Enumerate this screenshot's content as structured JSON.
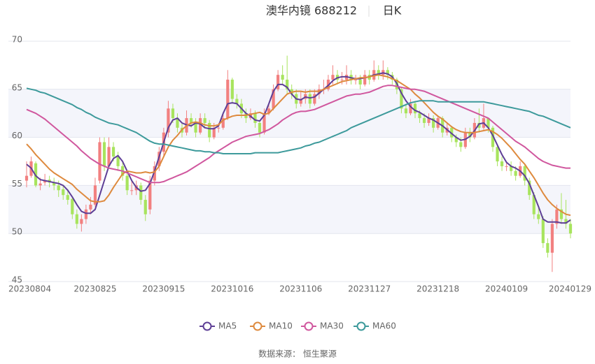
{
  "chart_data": {
    "type": "candlestick",
    "title": "澳华内镜 688212",
    "subtitle": "日K",
    "source": "数据来源： 恒生聚源",
    "up_color": "#f28080",
    "down_color": "#a8e45e",
    "ylim": [
      45,
      70
    ],
    "yticks": [
      45,
      50,
      55,
      60,
      65,
      70
    ],
    "grid": true,
    "split_area": true,
    "categories": [
      "20230804",
      null,
      null,
      null,
      null,
      null,
      null,
      null,
      null,
      null,
      null,
      null,
      null,
      null,
      null,
      "20230825",
      null,
      null,
      null,
      null,
      null,
      null,
      null,
      null,
      null,
      null,
      null,
      null,
      null,
      null,
      "20230915",
      null,
      null,
      null,
      null,
      null,
      null,
      null,
      null,
      null,
      null,
      null,
      null,
      null,
      null,
      "20231016",
      null,
      null,
      null,
      null,
      null,
      null,
      null,
      null,
      null,
      null,
      null,
      null,
      null,
      null,
      "20231106",
      null,
      null,
      null,
      null,
      null,
      null,
      null,
      null,
      null,
      null,
      null,
      null,
      null,
      null,
      "20231127",
      null,
      null,
      null,
      null,
      null,
      null,
      null,
      null,
      null,
      null,
      null,
      null,
      null,
      null,
      "20231218",
      null,
      null,
      null,
      null,
      null,
      null,
      null,
      null,
      null,
      null,
      null,
      null,
      null,
      null,
      "20240109",
      null,
      null,
      null,
      null,
      null,
      null,
      null,
      null,
      null,
      null,
      null,
      null,
      null,
      "20240129"
    ],
    "ohlc": [
      [
        55.5,
        56,
        54.8,
        57.5
      ],
      [
        56,
        57.5,
        55.8,
        58
      ],
      [
        57.3,
        55,
        54.8,
        57.5
      ],
      [
        55,
        55.2,
        54.5,
        55.8
      ],
      [
        55.3,
        55.5,
        55,
        56.2
      ],
      [
        55.6,
        55.3,
        54.8,
        56
      ],
      [
        55.3,
        55,
        54.5,
        55.8
      ],
      [
        55,
        54.5,
        53.8,
        55.5
      ],
      [
        54.6,
        54,
        53.5,
        55
      ],
      [
        54,
        53.5,
        53,
        54.6
      ],
      [
        53.6,
        52,
        51.5,
        53.8
      ],
      [
        52,
        51,
        50.5,
        52.5
      ],
      [
        51,
        51.5,
        50.2,
        52
      ],
      [
        51.5,
        52.5,
        51,
        53
      ],
      [
        52.5,
        53,
        52,
        53.8
      ],
      [
        53,
        55,
        52.8,
        55.8
      ],
      [
        55.5,
        59.5,
        55.2,
        60
      ],
      [
        59.5,
        57,
        56.5,
        60
      ],
      [
        57,
        59,
        56.8,
        60
      ],
      [
        59,
        58,
        57.5,
        59.5
      ],
      [
        58,
        57,
        56.5,
        58.5
      ],
      [
        57,
        56,
        55.5,
        57.5
      ],
      [
        56,
        54.5,
        54,
        56.2
      ],
      [
        54.5,
        54.5,
        54,
        55.5
      ],
      [
        54.5,
        55,
        54,
        55.5
      ],
      [
        55,
        53.5,
        53,
        55.3
      ],
      [
        53.5,
        52,
        51.3,
        54
      ],
      [
        52.5,
        55.5,
        52,
        56
      ],
      [
        55.5,
        57,
        55,
        57.5
      ],
      [
        57,
        58.5,
        56.5,
        59
      ],
      [
        58.5,
        60.5,
        58,
        61
      ],
      [
        60.5,
        63,
        60,
        63.8
      ],
      [
        63,
        62,
        61.5,
        63.5
      ],
      [
        62,
        61,
        60.5,
        62.5
      ],
      [
        61,
        60.5,
        60,
        61.5
      ],
      [
        60.5,
        62,
        60.2,
        62.8
      ],
      [
        62,
        61.5,
        61,
        62.5
      ],
      [
        61.5,
        60.5,
        60,
        62
      ],
      [
        60.5,
        62,
        60.3,
        62.5
      ],
      [
        62,
        61.5,
        61,
        62.5
      ],
      [
        61.5,
        60,
        59.5,
        61.8
      ],
      [
        60,
        61,
        59.8,
        61.5
      ],
      [
        61,
        61,
        60.5,
        61.5
      ],
      [
        61,
        62,
        60.8,
        62.5
      ],
      [
        62,
        66,
        61.8,
        67
      ],
      [
        66,
        64,
        63.5,
        66.2
      ],
      [
        64,
        63.5,
        63,
        64.5
      ],
      [
        63.5,
        62.5,
        62,
        64
      ],
      [
        62.5,
        62,
        61.5,
        63
      ],
      [
        62,
        62.5,
        61.8,
        63
      ],
      [
        62.5,
        61.5,
        61,
        62.8
      ],
      [
        61.5,
        60.5,
        60,
        61.8
      ],
      [
        60.5,
        62.5,
        60.3,
        63
      ],
      [
        62.5,
        63,
        62.3,
        63.5
      ],
      [
        63,
        65,
        62.8,
        65.5
      ],
      [
        65,
        66.5,
        64.8,
        67
      ],
      [
        66.5,
        66,
        65.5,
        67.5
      ],
      [
        66,
        65,
        64.5,
        68.5
      ],
      [
        65,
        64.5,
        64,
        65.5
      ],
      [
        64.5,
        63.5,
        63,
        65
      ],
      [
        63.5,
        64,
        63.2,
        64.8
      ],
      [
        64,
        64.5,
        63.5,
        65
      ],
      [
        64.5,
        63.5,
        63,
        65
      ],
      [
        63.5,
        64.5,
        63.3,
        65
      ],
      [
        64.5,
        65,
        64,
        65.5
      ],
      [
        65,
        65,
        64.5,
        66
      ],
      [
        65,
        66,
        64.8,
        66.5
      ],
      [
        66,
        66.5,
        65.5,
        67.5
      ],
      [
        66.5,
        66,
        65.5,
        67
      ],
      [
        66,
        66,
        65.5,
        66.8
      ],
      [
        66,
        66.5,
        65.5,
        67.5
      ],
      [
        66.5,
        66,
        65.5,
        67
      ],
      [
        66,
        66,
        65.5,
        66.5
      ],
      [
        66,
        65.5,
        65,
        66.5
      ],
      [
        65.5,
        66.5,
        65.3,
        67
      ],
      [
        66.5,
        66,
        65.5,
        67
      ],
      [
        66,
        67,
        65.8,
        68
      ],
      [
        67,
        66.5,
        66,
        67.5
      ],
      [
        66.5,
        67,
        66,
        68
      ],
      [
        67,
        66.5,
        66,
        67.3
      ],
      [
        66.5,
        66,
        65.5,
        66.8
      ],
      [
        66,
        65,
        64.5,
        66.2
      ],
      [
        65,
        63,
        62.5,
        65.2
      ],
      [
        63,
        62.5,
        62,
        63.5
      ],
      [
        62.5,
        63.5,
        62.3,
        64
      ],
      [
        63.5,
        62.5,
        62,
        63.8
      ],
      [
        62.5,
        62,
        61.5,
        62.8
      ],
      [
        62,
        61.5,
        61,
        62.5
      ],
      [
        61.5,
        62,
        61.2,
        62.5
      ],
      [
        62,
        61,
        60.5,
        62.3
      ],
      [
        61,
        62,
        60.8,
        62.3
      ],
      [
        62,
        60.5,
        60,
        62.2
      ],
      [
        60.5,
        61,
        60.2,
        61.5
      ],
      [
        61,
        60,
        59.5,
        61.2
      ],
      [
        60,
        59.5,
        59,
        60.3
      ],
      [
        59.5,
        59,
        58.5,
        60
      ],
      [
        59,
        60.5,
        58.8,
        61
      ],
      [
        60.5,
        60,
        59.5,
        61
      ],
      [
        60,
        61.5,
        59.8,
        62
      ],
      [
        61.5,
        61,
        60.5,
        63
      ],
      [
        61,
        62,
        60.8,
        63.5
      ],
      [
        62,
        61,
        60.5,
        62
      ],
      [
        61,
        59,
        58.5,
        61.2
      ],
      [
        59,
        57.5,
        57,
        59.3
      ],
      [
        57.5,
        57,
        56.5,
        58
      ],
      [
        57,
        57,
        56.5,
        57.5
      ],
      [
        57,
        56.5,
        56,
        57.5
      ],
      [
        56.5,
        56,
        55.5,
        57
      ],
      [
        56,
        57,
        55.8,
        57.5
      ],
      [
        57,
        55.5,
        55,
        57.2
      ],
      [
        55.5,
        54,
        53.5,
        55.8
      ],
      [
        54,
        52,
        51.5,
        54.3
      ],
      [
        52,
        51.5,
        51,
        52.8
      ],
      [
        51.5,
        49,
        48.5,
        51.8
      ],
      [
        49,
        48,
        47.5,
        49.5
      ],
      [
        48,
        51,
        46,
        51.5
      ],
      [
        51,
        52.5,
        50.5,
        53
      ],
      [
        52.5,
        51.5,
        51,
        54.2
      ],
      [
        51.5,
        51,
        50.5,
        53.5
      ],
      [
        51,
        50,
        49.5,
        51.5
      ]
    ],
    "series": [
      {
        "name": "MA5",
        "color": "#5e3f96",
        "values": [
          57.2,
          56.8,
          56,
          55.6,
          55.5,
          55.4,
          55.3,
          55.2,
          55,
          54.5,
          53.8,
          53,
          52.3,
          52.1,
          52.1,
          52.5,
          54,
          55.5,
          57,
          57.8,
          58.1,
          57.5,
          56.5,
          55.5,
          54.8,
          54.4,
          54.5,
          55.2,
          56.5,
          58,
          59.5,
          61,
          61.8,
          62,
          61.5,
          61.3,
          61.2,
          61.5,
          61.4,
          61,
          60.9,
          60.9,
          61.2,
          62.5,
          63.5,
          63.6,
          63.5,
          63,
          62.5,
          62.2,
          61.8,
          61.7,
          62.3,
          63.5,
          64.8,
          65.5,
          65.5,
          65.2,
          64.5,
          64,
          63.9,
          64.2,
          64.1,
          64.2,
          64.6,
          65,
          65.4,
          65.9,
          66.2,
          66.3,
          66.3,
          66.2,
          66.1,
          66.1,
          66.2,
          66.3,
          66.5,
          66.6,
          66.7,
          66.6,
          66.3,
          65.6,
          64.6,
          63.8,
          63.2,
          62.8,
          62.6,
          62.3,
          62,
          61.8,
          61.5,
          61.2,
          60.8,
          60.4,
          60,
          59.7,
          59.8,
          60.1,
          60.7,
          61.4,
          61.5,
          61,
          60.2,
          59.2,
          58.2,
          57.4,
          57,
          56.8,
          56.5,
          56,
          55.2,
          54,
          52.8,
          51.5,
          51.2,
          51.2,
          51.2,
          51.1,
          51.1,
          51.4
        ]
      },
      {
        "name": "MA10",
        "color": "#de8a3e",
        "values": [
          59.3,
          58.8,
          58.2,
          57.7,
          57.2,
          56.7,
          56.3,
          56,
          55.7,
          55.4,
          55.1,
          54.6,
          54.2,
          53.8,
          53.4,
          53.3,
          53.3,
          53.4,
          54,
          54.8,
          55.5,
          56.2,
          56.5,
          56.4,
          56.3,
          56.3,
          56.4,
          56.3,
          56.4,
          57,
          58,
          59,
          59.7,
          60.2,
          60.8,
          61.2,
          61.5,
          61.6,
          61.5,
          61.3,
          61.2,
          61.2,
          61.3,
          61.8,
          62,
          62.2,
          62.3,
          62.3,
          62.3,
          62.4,
          62.5,
          62.6,
          62.4,
          62.5,
          63,
          63.5,
          64,
          64.5,
          64.7,
          64.8,
          64.8,
          64.7,
          64.8,
          64.8,
          64.8,
          65,
          65.2,
          65.4,
          65.6,
          65.8,
          65.9,
          66,
          66.1,
          66.2,
          66.2,
          66.3,
          66.4,
          66.5,
          66.4,
          66.3,
          66.1,
          65.9,
          65.6,
          65.3,
          65,
          64.5,
          64.1,
          63.6,
          63.1,
          62.6,
          62.2,
          61.9,
          61.5,
          61.1,
          60.8,
          60.6,
          60.5,
          60.5,
          60.5,
          60.6,
          60.7,
          60.8,
          60.6,
          60.3,
          59.9,
          59.4,
          58.9,
          58.3,
          57.7,
          57.2,
          56.5,
          55.8,
          55,
          54.2,
          53.5,
          53,
          52.6,
          52.3,
          52,
          51.9
        ]
      },
      {
        "name": "MA30",
        "color": "#d0579e",
        "values": [
          62.9,
          62.7,
          62.5,
          62.2,
          61.9,
          61.5,
          61.1,
          60.7,
          60.3,
          59.9,
          59.5,
          59.1,
          58.6,
          58.2,
          57.8,
          57.5,
          57.2,
          57,
          56.8,
          56.7,
          56.6,
          56.5,
          56.3,
          56.1,
          55.9,
          55.7,
          55.5,
          55.3,
          55.3,
          55.3,
          55.4,
          55.6,
          55.8,
          56,
          56.2,
          56.4,
          56.7,
          57,
          57.3,
          57.6,
          57.9,
          58.3,
          58.6,
          58.9,
          59.2,
          59.5,
          59.7,
          59.9,
          60.1,
          60.2,
          60.3,
          60.4,
          60.6,
          60.8,
          61.1,
          61.4,
          61.8,
          62.1,
          62.4,
          62.6,
          62.7,
          62.7,
          62.8,
          62.9,
          63.1,
          63.3,
          63.5,
          63.7,
          63.9,
          64.1,
          64.3,
          64.4,
          64.5,
          64.5,
          64.6,
          64.7,
          64.9,
          65.1,
          65.3,
          65.4,
          65.4,
          65.3,
          65.2,
          65.1,
          65,
          65,
          64.9,
          64.8,
          64.6,
          64.4,
          64.2,
          64,
          63.8,
          63.6,
          63.4,
          63.2,
          63,
          62.8,
          62.6,
          62.4,
          62.2,
          62,
          61.6,
          61.2,
          60.8,
          60.4,
          60,
          59.6,
          59.3,
          59,
          58.6,
          58.2,
          57.8,
          57.5,
          57.3,
          57.1,
          57,
          56.9,
          56.8,
          56.8
        ]
      },
      {
        "name": "MA60",
        "color": "#3d9a9b",
        "values": [
          65.1,
          65,
          64.9,
          64.7,
          64.6,
          64.4,
          64.2,
          64,
          63.8,
          63.6,
          63.4,
          63.1,
          62.9,
          62.6,
          62.4,
          62.1,
          61.9,
          61.7,
          61.5,
          61.4,
          61.3,
          61.1,
          60.9,
          60.7,
          60.5,
          60.2,
          59.9,
          59.6,
          59.4,
          59.3,
          59.3,
          59.2,
          59.1,
          59,
          58.9,
          58.8,
          58.7,
          58.6,
          58.6,
          58.5,
          58.5,
          58.4,
          58.4,
          58.3,
          58.3,
          58.3,
          58.3,
          58.3,
          58.3,
          58.3,
          58.4,
          58.4,
          58.4,
          58.4,
          58.4,
          58.4,
          58.5,
          58.6,
          58.7,
          58.8,
          58.9,
          59.1,
          59.2,
          59.4,
          59.5,
          59.7,
          59.9,
          60.1,
          60.3,
          60.5,
          60.7,
          61,
          61.2,
          61.4,
          61.6,
          61.8,
          62,
          62.2,
          62.4,
          62.6,
          62.8,
          63,
          63.2,
          63.4,
          63.6,
          63.7,
          63.8,
          63.8,
          63.8,
          63.8,
          63.7,
          63.7,
          63.7,
          63.7,
          63.7,
          63.7,
          63.7,
          63.7,
          63.7,
          63.7,
          63.7,
          63.6,
          63.5,
          63.4,
          63.3,
          63.2,
          63.1,
          63,
          62.9,
          62.8,
          62.7,
          62.5,
          62.3,
          62.2,
          62,
          61.8,
          61.6,
          61.4,
          61.2,
          61
        ]
      }
    ]
  }
}
